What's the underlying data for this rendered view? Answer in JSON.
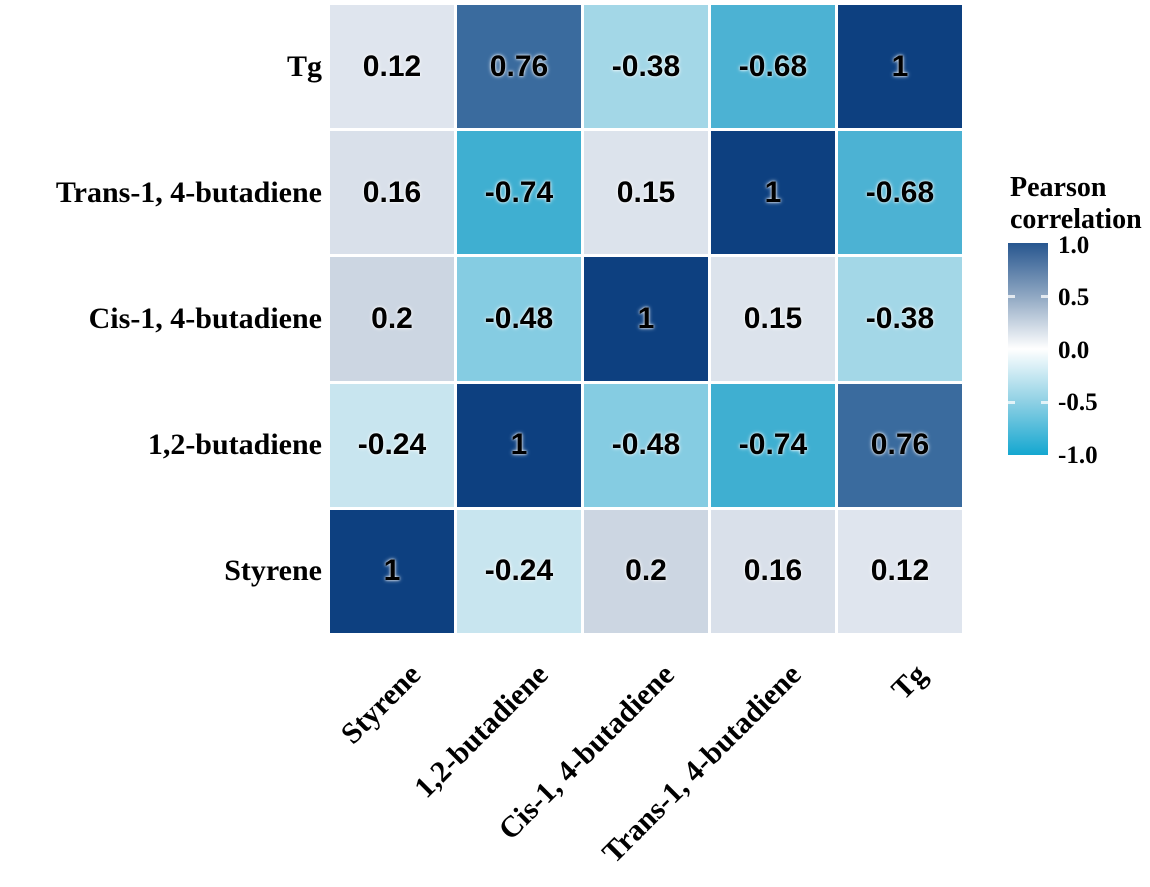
{
  "figure": {
    "background": "#ffffff"
  },
  "legend": {
    "title_line1": "Pearson",
    "title_line2": "correlation",
    "tick_labels": [
      "1.0",
      "0.5",
      "0.0",
      "-0.5",
      "-1.0"
    ],
    "gradient_stops": [
      "#27568f",
      "#8fa7c2",
      "#ffffff",
      "#8ed0e4",
      "#14a7d0"
    ]
  },
  "chart_data": {
    "type": "heatmap",
    "title": "",
    "colorbar_title": "Pearson correlation",
    "colorbar_ticks": [
      1.0,
      0.5,
      0.0,
      -0.5,
      -1.0
    ],
    "value_range": [
      -1,
      1
    ],
    "legend_position": "right",
    "grid": "off",
    "x_categories": [
      "Styrene",
      "1,2-butadiene",
      "Cis-1, 4-butadiene",
      "Trans-1, 4-butadiene",
      "Tg"
    ],
    "y_categories": [
      "Tg",
      "Trans-1, 4-butadiene",
      "Cis-1, 4-butadiene",
      "1,2-butadiene",
      "Styrene"
    ],
    "matrix": [
      [
        0.12,
        0.76,
        -0.38,
        -0.68,
        1
      ],
      [
        0.16,
        -0.74,
        0.15,
        1,
        -0.68
      ],
      [
        0.2,
        -0.48,
        1,
        0.15,
        -0.38
      ],
      [
        -0.24,
        1,
        -0.48,
        -0.74,
        0.76
      ],
      [
        1,
        -0.24,
        0.2,
        0.16,
        0.12
      ]
    ],
    "value_colors": {
      "1": "#0d4080",
      "0.76": "#3a6b9e",
      "0.2": "#ccd6e2",
      "0.16": "#d9e0ea",
      "0.15": "#dce3ec",
      "0.12": "#dfe5ee",
      "-0.24": "#c8e5ef",
      "-0.38": "#a3d7e7",
      "-0.48": "#85cce2",
      "-0.68": "#4cb2d3",
      "-0.74": "#3fafd1"
    }
  }
}
